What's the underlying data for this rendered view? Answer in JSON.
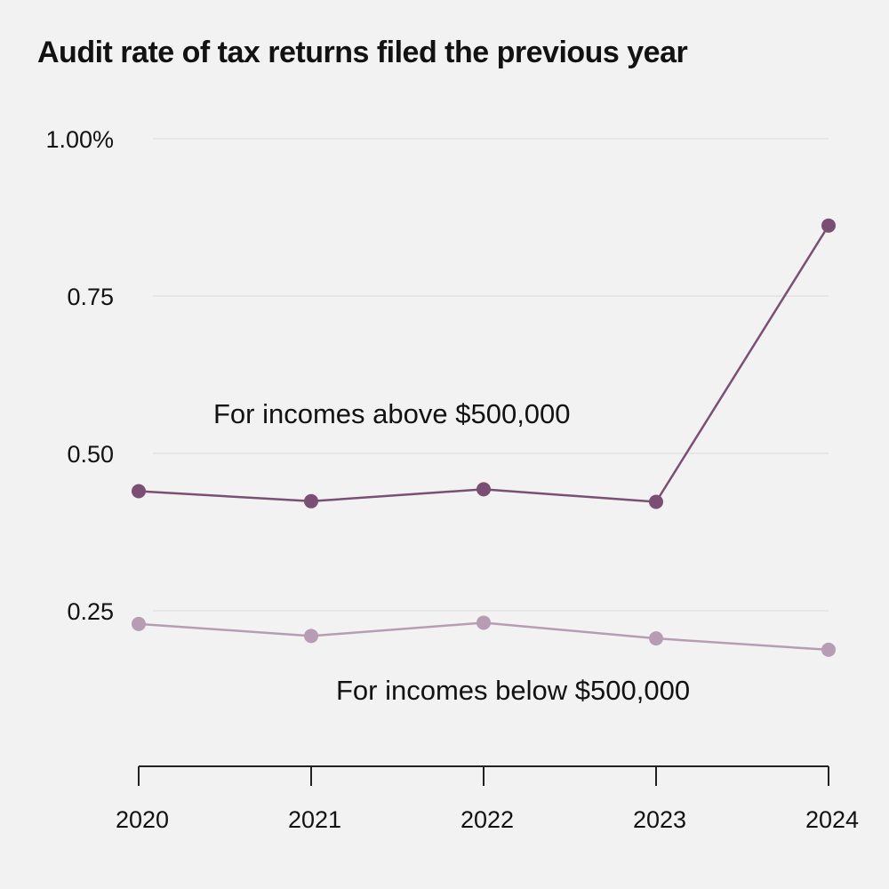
{
  "chart_data": {
    "type": "line",
    "title": "Audit rate of tax returns filed the previous year",
    "xlabel": "",
    "ylabel": "",
    "x": [
      "2020",
      "2021",
      "2022",
      "2023",
      "2024"
    ],
    "ylim": [
      0,
      1.0
    ],
    "yticks": [
      {
        "value": 1.0,
        "label": "1.00%"
      },
      {
        "value": 0.75,
        "label": "0.75"
      },
      {
        "value": 0.5,
        "label": "0.50"
      },
      {
        "value": 0.25,
        "label": "0.25"
      }
    ],
    "grid": true,
    "series": [
      {
        "name": "For incomes above $500,000",
        "color": "#7a4f73",
        "values": [
          0.44,
          0.424,
          0.443,
          0.423,
          0.862
        ]
      },
      {
        "name": "For incomes below $500,000",
        "color": "#b79db3",
        "values": [
          0.229,
          0.21,
          0.231,
          0.206,
          0.188
        ]
      }
    ]
  }
}
